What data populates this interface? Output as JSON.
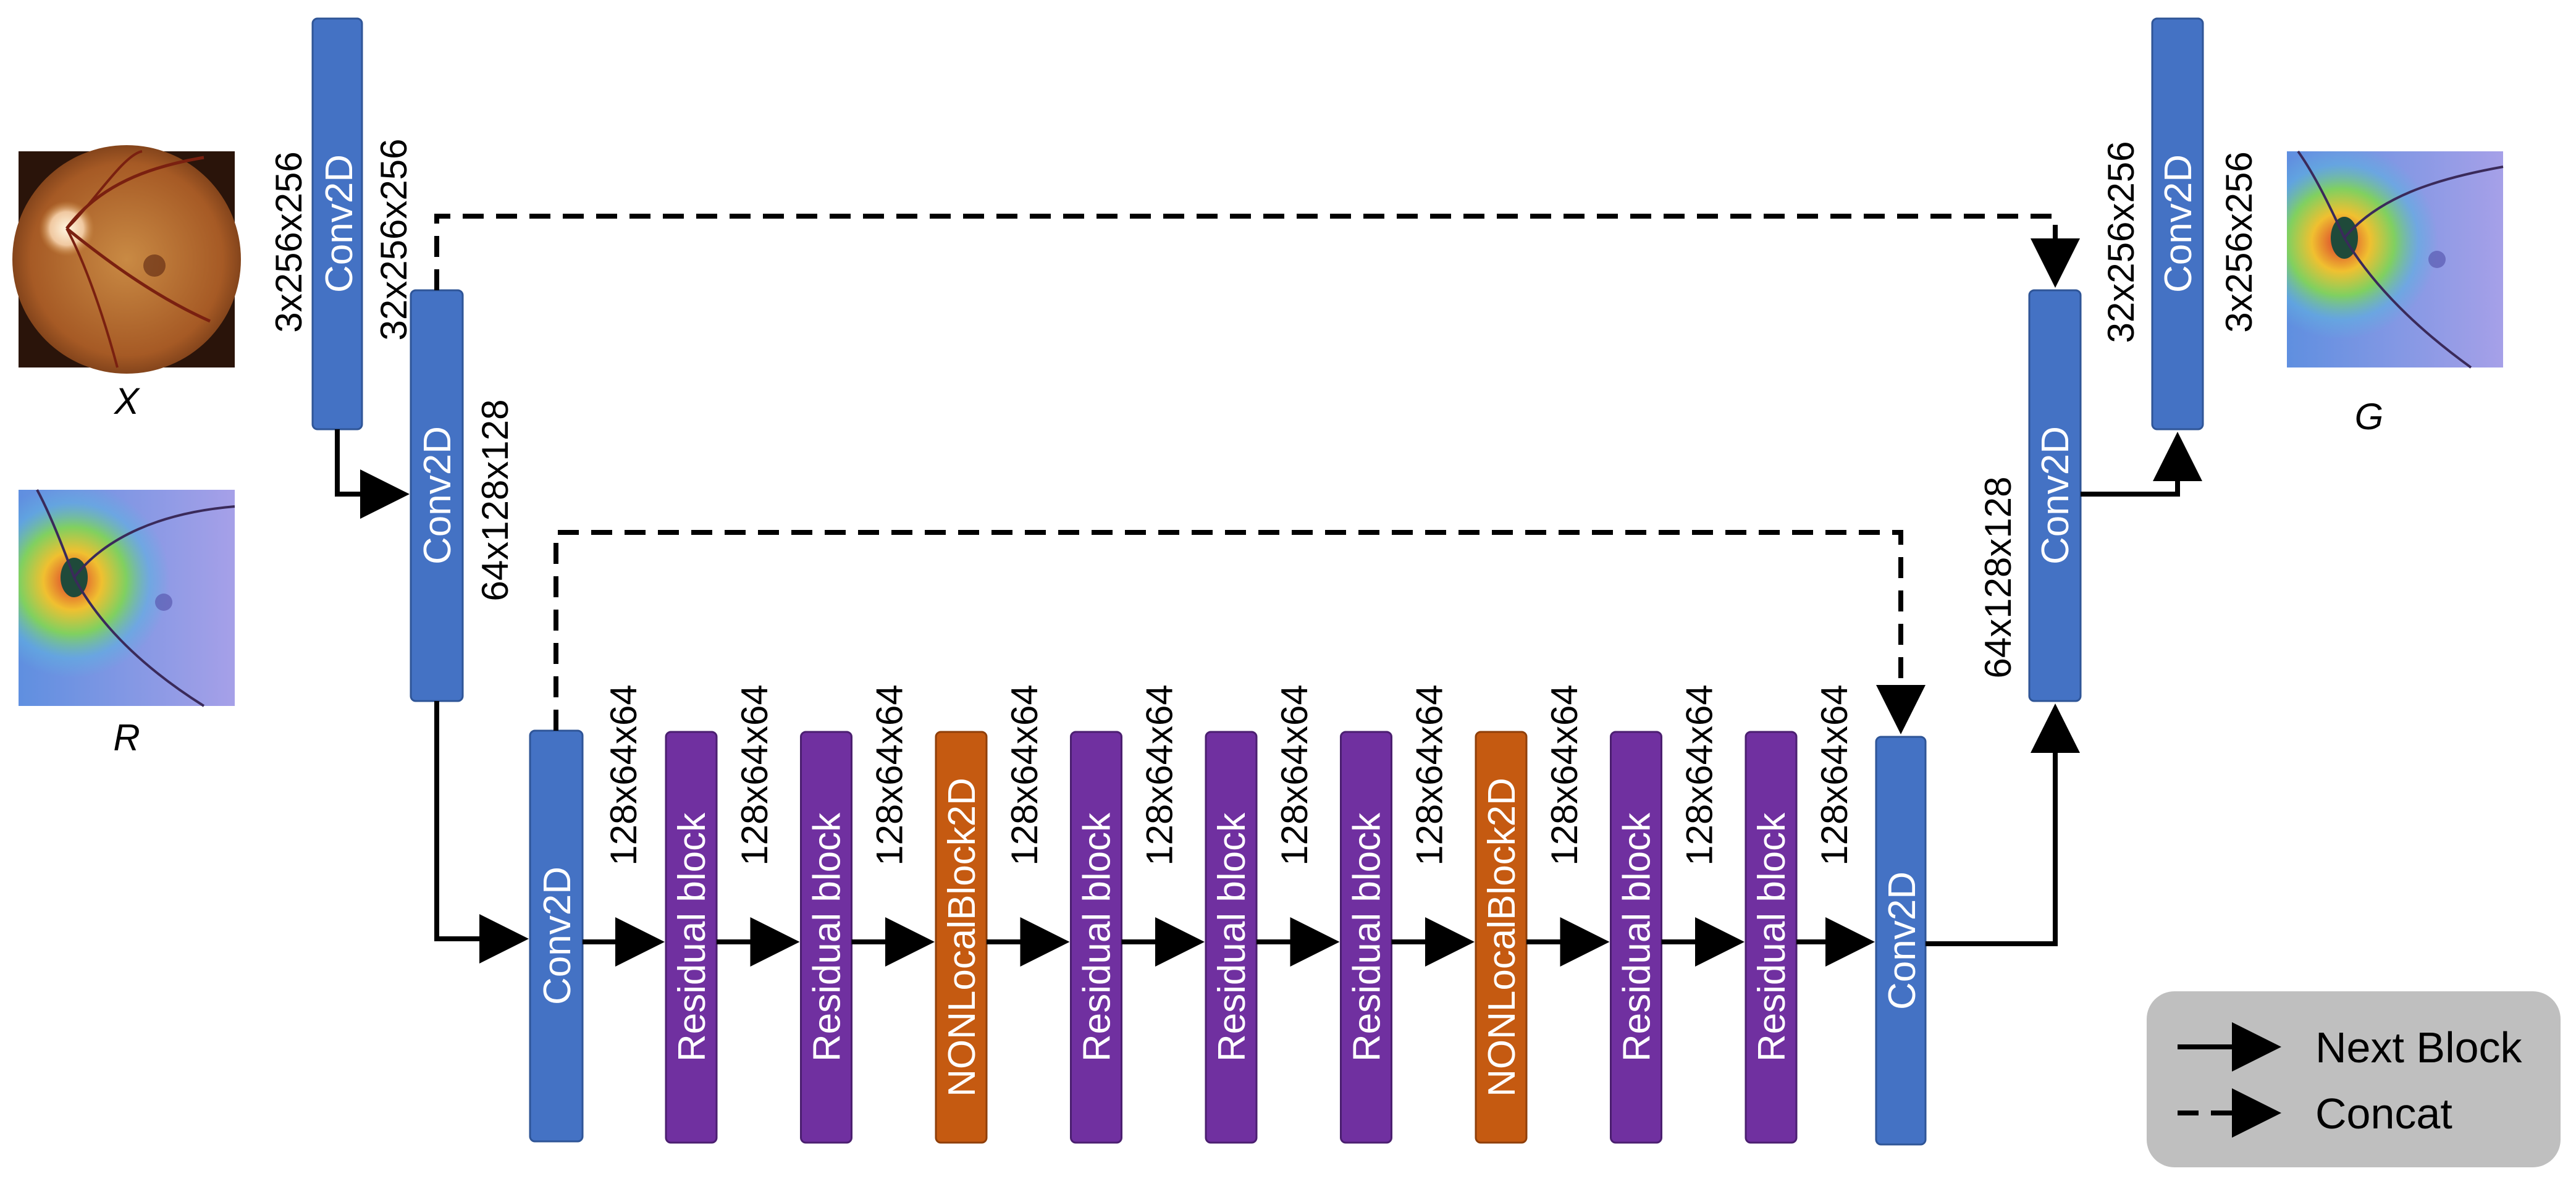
{
  "colors": {
    "conv": "#4472C4",
    "residual": "#7030A0",
    "nonlocal": "#C55A11",
    "block_text": "#FFFFFF",
    "arrow": "#000000",
    "legend_bg": "#BFBFBF"
  },
  "inputs": {
    "x_label": "X",
    "r_label": "R"
  },
  "output": {
    "g_label": "G"
  },
  "encoder": {
    "conv1": {
      "label": "Conv2D",
      "in_dim": "3x256x256",
      "out_dim": "32x256x256"
    },
    "conv2": {
      "label": "Conv2D",
      "out_dim": "64x128x128"
    }
  },
  "bottleneck": {
    "conv_in": {
      "label": "Conv2D",
      "out_dim": "128x64x64"
    },
    "blocks": [
      {
        "label": "Residual block",
        "kind": "residual",
        "out_dim": "128x64x64"
      },
      {
        "label": "Residual block",
        "kind": "residual",
        "out_dim": "128x64x64"
      },
      {
        "label": "NONLocalBlock2D",
        "kind": "nonlocal",
        "out_dim": "128x64x64"
      },
      {
        "label": "Residual block",
        "kind": "residual",
        "out_dim": "128x64x64"
      },
      {
        "label": "Residual block",
        "kind": "residual",
        "out_dim": "128x64x64"
      },
      {
        "label": "Residual block",
        "kind": "residual",
        "out_dim": "128x64x64"
      },
      {
        "label": "NONLocalBlock2D",
        "kind": "nonlocal",
        "out_dim": "128x64x64"
      },
      {
        "label": "Residual block",
        "kind": "residual",
        "out_dim": "128x64x64"
      },
      {
        "label": "Residual block",
        "kind": "residual",
        "out_dim": "128x64x64"
      }
    ],
    "conv_out": {
      "label": "Conv2D"
    }
  },
  "decoder": {
    "conv1": {
      "label": "Conv2D",
      "in_dim": "64x128x128",
      "out_dim": "32x256x256"
    },
    "conv2": {
      "label": "Conv2D",
      "out_dim": "3x256x256"
    }
  },
  "legend": {
    "next_block": "Next Block",
    "concat": "Concat"
  }
}
